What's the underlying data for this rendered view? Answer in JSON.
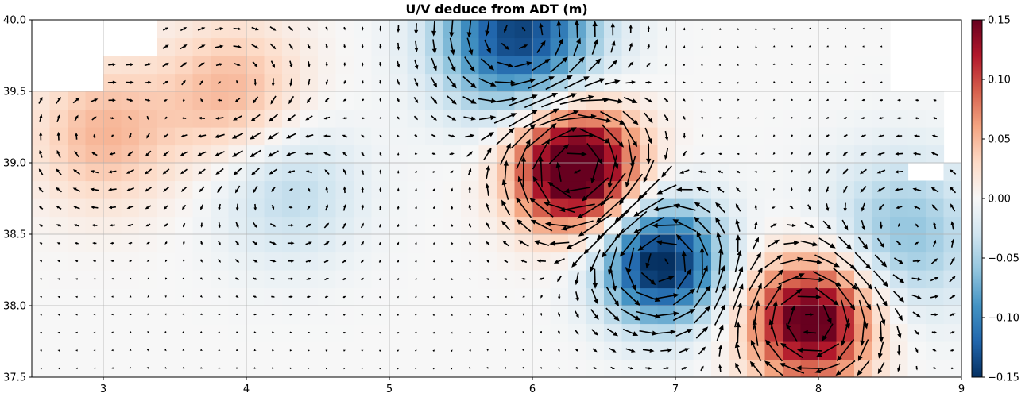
{
  "chart_data": {
    "type": "heatmap",
    "title": "U/V deduce from ADT (m)",
    "xlabel": "",
    "ylabel": "",
    "xlim": [
      2.5,
      9.0
    ],
    "ylim": [
      37.5,
      40.0
    ],
    "x_ticks": [
      3,
      4,
      5,
      6,
      7,
      8,
      9
    ],
    "y_ticks": [
      37.5,
      38.0,
      38.5,
      39.0,
      39.5,
      40.0
    ],
    "x_tick_labels": [
      "3",
      "4",
      "5",
      "6",
      "7",
      "8",
      "9"
    ],
    "y_tick_labels": [
      "37.5",
      "38.0",
      "38.5",
      "39.0",
      "39.5",
      "40.0"
    ],
    "grid": true,
    "colormap": "RdBu_r",
    "colorbar": {
      "vmin": -0.15,
      "vmax": 0.15,
      "ticks": [
        -0.15,
        -0.1,
        -0.05,
        0.0,
        0.05,
        0.1,
        0.15
      ],
      "tick_labels": [
        "−0.15",
        "−0.10",
        "−0.05",
        "0.00",
        "0.05",
        "0.10",
        "0.15"
      ]
    },
    "features": [
      {
        "kind": "anticyclonic_eddy",
        "lon": 6.3,
        "lat": 38.97,
        "amplitude": 0.2
      },
      {
        "kind": "anticyclonic_eddy",
        "lon": 7.95,
        "lat": 37.9,
        "amplitude": 0.17
      },
      {
        "kind": "cyclonic_eddy",
        "lon": 6.9,
        "lat": 38.3,
        "amplitude": -0.16
      },
      {
        "kind": "cyclonic_band",
        "lon": 5.9,
        "lat": 39.9,
        "amplitude": -0.14
      },
      {
        "kind": "cyclonic_band",
        "lon": 8.6,
        "lat": 38.5,
        "amplitude": -0.06
      },
      {
        "kind": "positive_region",
        "lon": 3.0,
        "lat": 39.2,
        "amplitude": 0.05
      },
      {
        "kind": "positive_region",
        "lon": 3.9,
        "lat": 39.5,
        "amplitude": 0.05
      },
      {
        "kind": "negative_region",
        "lon": 4.3,
        "lat": 38.8,
        "amplitude": -0.04
      }
    ],
    "vector_field": {
      "quantity": "U/V geostrophic velocity from ADT",
      "grid_spacing_deg": 0.125
    }
  }
}
